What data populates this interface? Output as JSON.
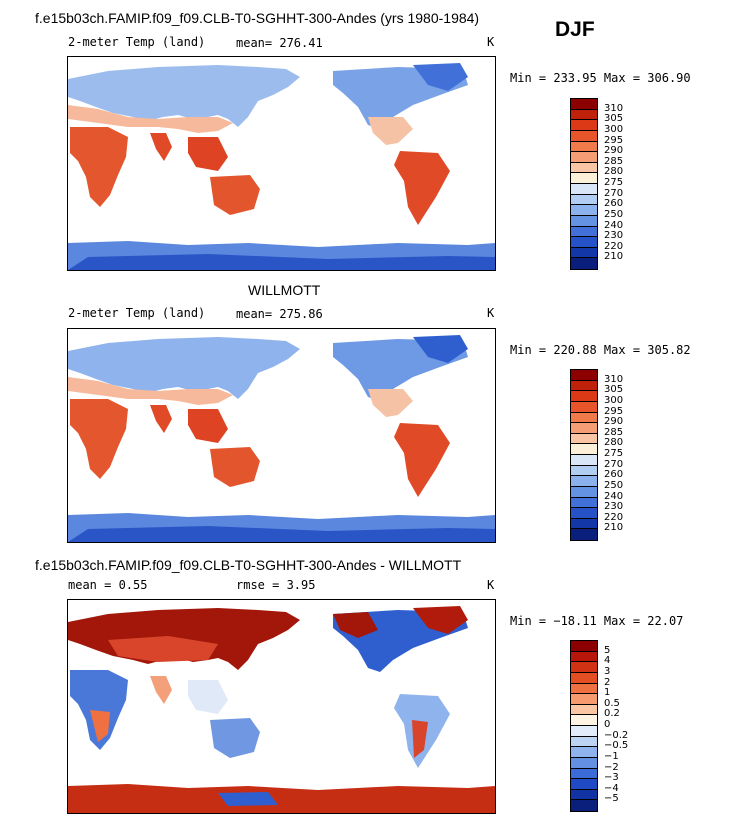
{
  "season": "DJF",
  "panels": [
    {
      "title": "f.e15b03ch.FAMIP.f09_f09.CLB-T0-SGHHT-300-Andes (yrs 1980-1984)",
      "left": "2-meter Temp (land)",
      "center": "mean= 276.41",
      "units": "K",
      "minmax": "Min = 233.95 Max = 306.90",
      "colorbar": {
        "labels": [
          "310",
          "305",
          "300",
          "295",
          "290",
          "285",
          "280",
          "275",
          "270",
          "260",
          "250",
          "240",
          "230",
          "220",
          "210"
        ],
        "colors": [
          "#8c0000",
          "#c0210b",
          "#dc3a16",
          "#e9552b",
          "#f07a4a",
          "#f59d74",
          "#f9c5a5",
          "#fdf0d8",
          "#d8e6f8",
          "#b2cdf2",
          "#8bb2ec",
          "#6593e4",
          "#4171d8",
          "#2652c8",
          "#1337a6",
          "#0a1f7c"
        ]
      },
      "chart_data": {
        "type": "heatmap",
        "variable": "2-meter Temp (land)",
        "units": "K",
        "mean": 276.41,
        "min": 233.95,
        "max": 306.9,
        "levels": [
          210,
          220,
          230,
          240,
          250,
          260,
          270,
          275,
          280,
          285,
          290,
          295,
          300,
          305,
          310
        ]
      }
    },
    {
      "title": "WILLMOTT",
      "left": "2-meter Temp (land)",
      "center": "mean= 275.86",
      "units": "K",
      "minmax": "Min = 220.88 Max = 305.82",
      "colorbar": {
        "labels": [
          "310",
          "305",
          "300",
          "295",
          "290",
          "285",
          "280",
          "275",
          "270",
          "260",
          "250",
          "240",
          "230",
          "220",
          "210"
        ],
        "colors": [
          "#8c0000",
          "#c0210b",
          "#dc3a16",
          "#e9552b",
          "#f07a4a",
          "#f59d74",
          "#f9c5a5",
          "#fdf0d8",
          "#d8e6f8",
          "#b2cdf2",
          "#8bb2ec",
          "#6593e4",
          "#4171d8",
          "#2652c8",
          "#1337a6",
          "#0a1f7c"
        ]
      },
      "chart_data": {
        "type": "heatmap",
        "variable": "2-meter Temp (land)",
        "units": "K",
        "mean": 275.86,
        "min": 220.88,
        "max": 305.82,
        "levels": [
          210,
          220,
          230,
          240,
          250,
          260,
          270,
          275,
          280,
          285,
          290,
          295,
          300,
          305,
          310
        ]
      }
    },
    {
      "title": "f.e15b03ch.FAMIP.f09_f09.CLB-T0-SGHHT-300-Andes - WILLMOTT",
      "left": "mean =    0.55",
      "center": "rmse =    3.95",
      "units": "K",
      "minmax": "Min = −18.11 Max =  22.07",
      "colorbar": {
        "labels": [
          "5",
          "4",
          "3",
          "2",
          "1",
          "0.5",
          "0.2",
          "0",
          "−0.2",
          "−0.5",
          "−1",
          "−2",
          "−3",
          "−4",
          "−5"
        ],
        "colors": [
          "#8c0000",
          "#b8160a",
          "#d23214",
          "#e34f22",
          "#ef7040",
          "#f79a6f",
          "#fbc6a4",
          "#fff3e4",
          "#e2ecfb",
          "#bdd3f4",
          "#8fb3ec",
          "#6390e3",
          "#3b6bd6",
          "#2049c4",
          "#1233a4",
          "#0a1f7c"
        ]
      },
      "chart_data": {
        "type": "heatmap",
        "variable": "2-meter Temp (land) difference",
        "units": "K",
        "mean": 0.55,
        "rmse": 3.95,
        "min": -18.11,
        "max": 22.07,
        "levels": [
          -5,
          -4,
          -3,
          -2,
          -1,
          -0.5,
          -0.2,
          0,
          0.2,
          0.5,
          1,
          2,
          3,
          4,
          5
        ]
      }
    }
  ]
}
